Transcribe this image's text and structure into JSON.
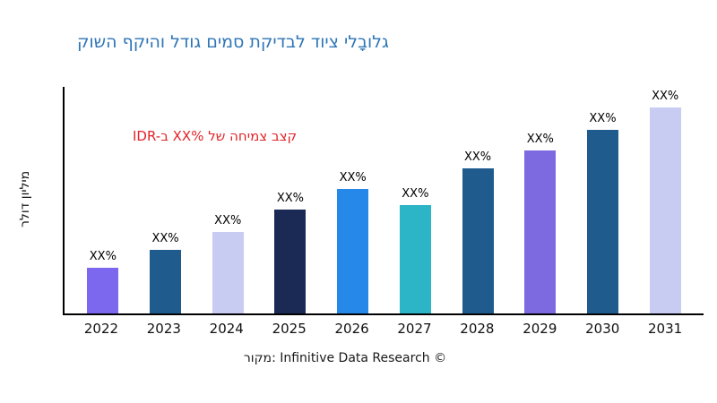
{
  "title": {
    "text": "קושה ףקיהו לדוג םימס תקידבל דויצ ילבָולג"
  },
  "annotation": {
    "text": "IDR-ב XX% לש החימצ בצק"
  },
  "y_axis_label": "רלוד ןוילימ",
  "source_caption": "רוקמ: Infinitive Data Research ©",
  "colors": {
    "title": "#2E75B6",
    "annotation": "#E3242B",
    "axis": "#000000",
    "tick_label": "#111111",
    "caption": "#1A1A1A"
  },
  "chart_data": {
    "type": "bar",
    "title": "קושה ףקיהו לדוג םימס תקידבל דויצ ילבָולג",
    "categories": [
      "2022",
      "2023",
      "2024",
      "2025",
      "2026",
      "2027",
      "2028",
      "2029",
      "2030",
      "2031"
    ],
    "values": [
      20,
      28,
      36,
      46,
      55,
      48,
      64,
      72,
      81,
      91
    ],
    "data_labels": [
      "XX%",
      "XX%",
      "XX%",
      "XX%",
      "XX%",
      "XX%",
      "XX%",
      "XX%",
      "XX%",
      "XX%"
    ],
    "bar_colors": [
      "#7B68EE",
      "#1F5B8D",
      "#C9CCF2",
      "#1B2A55",
      "#2689EA",
      "#2CB5C6",
      "#1F5B8D",
      "#7E6AE0",
      "#1F5B8D",
      "#C9CCF2"
    ],
    "xlabel": "",
    "ylabel": "רלוד ןוילימ",
    "ylim": [
      0,
      100
    ],
    "grid": false,
    "legend": "none",
    "annotation": "IDR-ב XX% לש החימצ בצק"
  }
}
